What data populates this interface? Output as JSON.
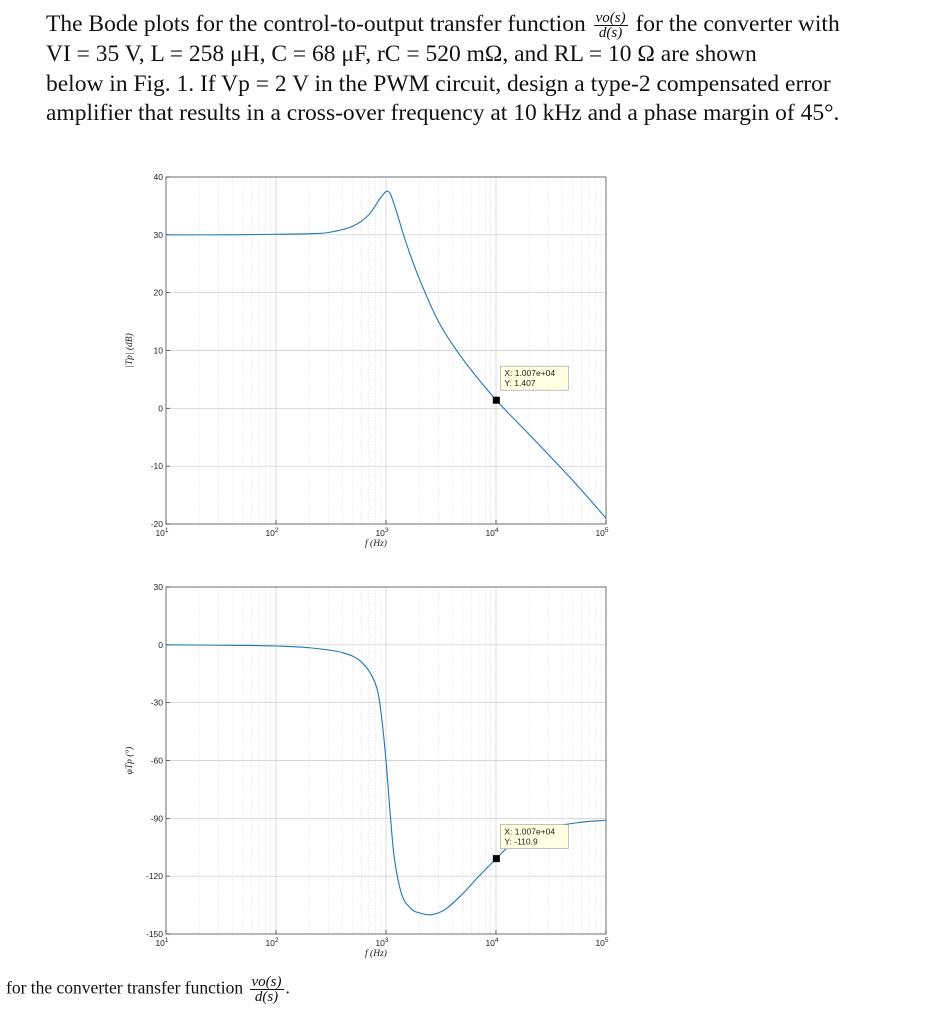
{
  "problem": {
    "line1_a": "The Bode plots for the control-to-output transfer function",
    "frac_num": "vo(s)",
    "frac_den": "d(s)",
    "line1_b": "for the converter with",
    "line2": "VI = 35 V, L = 258 μH, C = 68 μF, rC = 520 mΩ, and RL = 10 Ω are shown",
    "line3": "below in Fig. 1. If Vp = 2 V in the PWM circuit, design a type-2 compensated error",
    "line4": "amplifier that results in a cross-over frequency at 10 kHz and a phase margin of 45°."
  },
  "caption": {
    "text": "for the converter transfer function",
    "frac_num": "vo(s)",
    "frac_den": "d(s)",
    "end": "."
  },
  "chart_data": [
    {
      "type": "line",
      "xlabel": "f (Hz)",
      "ylabel": "|Tp| (dB)",
      "xscale": "log",
      "xlim": [
        10,
        100000
      ],
      "ylim": [
        -20,
        40
      ],
      "x_ticks": [
        "10^1",
        "10^2",
        "10^3",
        "10^4",
        "10^5"
      ],
      "y_ticks": [
        "40",
        "30",
        "20",
        "10",
        "0",
        "-10",
        "-20"
      ],
      "grid": true,
      "series": [
        {
          "x": [
            10,
            30,
            100,
            200,
            300,
            500,
            700,
            900,
            1050,
            1200,
            1500,
            2000,
            3000,
            5000,
            10070,
            20000,
            50000,
            100000
          ],
          "y": [
            30,
            30,
            30.1,
            30.2,
            30.4,
            31.5,
            33.5,
            36.5,
            37.5,
            35,
            29,
            22.5,
            15,
            8.5,
            1.407,
            -4.5,
            -12.5,
            -19
          ]
        }
      ],
      "annotation": {
        "x": 10070,
        "y": 1.407,
        "label_x": "X: 1.007e+04",
        "label_y": "Y: 1.407"
      }
    },
    {
      "type": "line",
      "xlabel": "f (Hz)",
      "ylabel": "φTp (°)",
      "xscale": "log",
      "xlim": [
        10,
        100000
      ],
      "ylim": [
        -150,
        30
      ],
      "x_ticks": [
        "10^1",
        "10^2",
        "10^3",
        "10^4",
        "10^5"
      ],
      "y_ticks": [
        "30",
        "0",
        "-30",
        "-60",
        "-90",
        "-120",
        "-150"
      ],
      "grid": true,
      "series": [
        {
          "x": [
            10,
            50,
            100,
            200,
            400,
            600,
            800,
            900,
            1000,
            1100,
            1200,
            1400,
            1700,
            2000,
            2600,
            3500,
            5000,
            7000,
            10070,
            15000,
            30000,
            60000,
            100000
          ],
          "y": [
            0,
            -0.3,
            -0.6,
            -1.5,
            -4,
            -9,
            -20,
            -35,
            -60,
            -90,
            -112,
            -130,
            -137,
            -139,
            -140,
            -137,
            -129,
            -120,
            -110.9,
            -102,
            -95,
            -92,
            -91
          ]
        }
      ],
      "annotation": {
        "x": 10070,
        "y": -110.9,
        "label_x": "X: 1.007e+04",
        "label_y": "Y: -110.9"
      }
    }
  ]
}
